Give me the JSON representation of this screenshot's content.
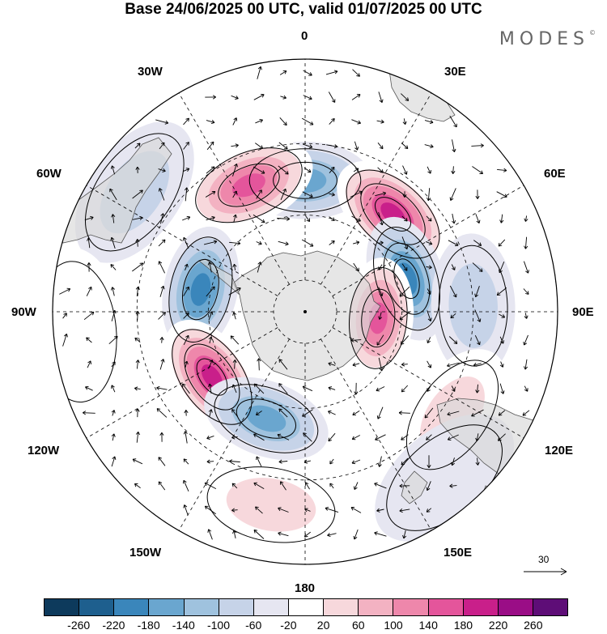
{
  "title": "Base 24/06/2025 00 UTC, valid 01/07/2025 00 UTC",
  "brand": "MODES",
  "brand_mark": "©",
  "longitude_labels": {
    "top": "0",
    "bottom": "180",
    "left": "90W",
    "right": "90E",
    "upper_left_inner": "30W",
    "upper_right_inner": "30E",
    "upper_left_outer": "60W",
    "upper_right_outer": "60E",
    "lower_left_outer": "120W",
    "lower_right_outer": "120E",
    "lower_left_inner": "150W",
    "lower_right_inner": "150E"
  },
  "reference_vector": {
    "label": "30",
    "icon": "arrow-right-icon"
  },
  "colorbar": {
    "colors": [
      "#0d3a5c",
      "#1e5f8e",
      "#3a86bb",
      "#6aa6cf",
      "#9fc2de",
      "#c6d3e8",
      "#e6e6f1",
      "#ffffff",
      "#f7d8dc",
      "#f3b2c2",
      "#ee87ab",
      "#e4559b",
      "#c91f8a",
      "#9a0d86",
      "#5e0d77"
    ],
    "ticks": [
      "-260",
      "-220",
      "-180",
      "-140",
      "-100",
      "-60",
      "-20",
      "20",
      "60",
      "100",
      "140",
      "180",
      "220",
      "260"
    ]
  },
  "anomaly_centers": [
    {
      "lon": 0,
      "lat": -50,
      "value": -160
    },
    {
      "lon": 42,
      "lat": -50,
      "value": 220
    },
    {
      "lon": 72,
      "lat": -57,
      "value": -200
    },
    {
      "lon": 95,
      "lat": -67,
      "value": 180
    },
    {
      "lon": 88,
      "lat": -40,
      "value": -80
    },
    {
      "lon": -24,
      "lat": -48,
      "value": 180
    },
    {
      "lon": -78,
      "lat": -57,
      "value": -190
    },
    {
      "lon": -125,
      "lat": -55,
      "value": 240
    },
    {
      "lon": -160,
      "lat": -55,
      "value": -170
    },
    {
      "lon": -170,
      "lat": -33,
      "value": 60
    },
    {
      "lon": 125,
      "lat": -37,
      "value": 60
    },
    {
      "lon": -55,
      "lat": -30,
      "value": -60
    },
    {
      "lon": -95,
      "lat": -25,
      "value": 40
    },
    {
      "lon": 140,
      "lat": -28,
      "value": -40
    }
  ]
}
